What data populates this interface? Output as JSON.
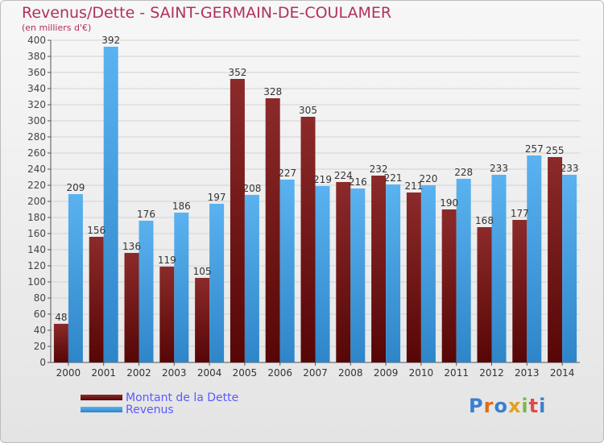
{
  "header": {
    "title": "Revenus/Dette - SAINT-GERMAIN-DE-COULAMER",
    "subtitle": "(en milliers d'€)"
  },
  "legend": [
    {
      "label": "Montant de la Dette",
      "color": "#6e1414"
    },
    {
      "label": "Revenus",
      "color": "#4aa3e6"
    }
  ],
  "logo": {
    "letters": [
      "P",
      "r",
      "o",
      "x",
      "i",
      "t",
      "i"
    ],
    "colors": [
      "#3a7fd0",
      "#e06a1a",
      "#3a7fd0",
      "#e0a020",
      "#7ab84a",
      "#e04a4a",
      "#3a7fd0"
    ]
  },
  "chart_data": {
    "type": "bar",
    "title": "Revenus/Dette - SAINT-GERMAIN-DE-COULAMER",
    "subtitle": "(en milliers d'€)",
    "categories": [
      "2000",
      "2001",
      "2002",
      "2003",
      "2004",
      "2005",
      "2006",
      "2007",
      "2008",
      "2009",
      "2010",
      "2011",
      "2012",
      "2013",
      "2014"
    ],
    "series": [
      {
        "name": "Montant de la Dette",
        "color": "#6e1414",
        "values": [
          48,
          156,
          136,
          119,
          105,
          352,
          328,
          305,
          224,
          232,
          211,
          190,
          168,
          177,
          255
        ]
      },
      {
        "name": "Revenus",
        "color": "#4aa3e6",
        "values": [
          209,
          392,
          176,
          186,
          197,
          208,
          227,
          219,
          216,
          221,
          220,
          228,
          233,
          257,
          233
        ]
      }
    ],
    "y_ticks": [
      0,
      20,
      40,
      60,
      80,
      100,
      120,
      140,
      160,
      180,
      200,
      220,
      240,
      260,
      280,
      300,
      320,
      340,
      360,
      380,
      400
    ],
    "ylim": [
      0,
      400
    ],
    "grid": true,
    "legend_position": "bottom-left"
  }
}
